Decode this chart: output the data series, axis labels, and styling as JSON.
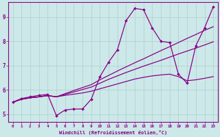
{
  "xlabel": "Windchill (Refroidissement éolien,°C)",
  "bg_color": "#cce8e8",
  "line_color": "#880088",
  "xlim": [
    -0.5,
    23.5
  ],
  "ylim": [
    4.7,
    9.6
  ],
  "yticks": [
    5,
    6,
    7,
    8,
    9
  ],
  "xticks": [
    0,
    1,
    2,
    3,
    4,
    5,
    6,
    7,
    8,
    9,
    10,
    11,
    12,
    13,
    14,
    15,
    16,
    17,
    18,
    19,
    20,
    21,
    22,
    23
  ],
  "lines": [
    {
      "x": [
        0,
        1,
        2,
        3,
        4,
        5,
        6,
        7,
        8,
        9,
        10,
        11,
        12,
        13,
        14,
        15,
        16,
        17,
        18,
        19,
        20,
        21,
        22,
        23
      ],
      "y": [
        5.5,
        5.62,
        5.68,
        5.72,
        5.77,
        5.72,
        5.78,
        5.83,
        5.88,
        5.95,
        6.05,
        6.15,
        6.25,
        6.35,
        6.45,
        6.52,
        6.58,
        6.62,
        6.65,
        6.55,
        6.38,
        6.42,
        6.48,
        6.55
      ],
      "marker": false,
      "lw": 0.9
    },
    {
      "x": [
        0,
        1,
        2,
        3,
        4,
        5,
        6,
        7,
        8,
        9,
        10,
        11,
        12,
        13,
        14,
        15,
        16,
        17,
        18,
        19,
        20,
        21,
        22,
        23
      ],
      "y": [
        5.5,
        5.62,
        5.68,
        5.72,
        5.77,
        5.72,
        5.82,
        5.92,
        6.02,
        6.12,
        6.28,
        6.44,
        6.58,
        6.72,
        6.85,
        6.98,
        7.1,
        7.22,
        7.35,
        7.48,
        7.6,
        7.72,
        7.85,
        7.98
      ],
      "marker": false,
      "lw": 0.9
    },
    {
      "x": [
        0,
        1,
        2,
        3,
        4,
        5,
        6,
        7,
        8,
        9,
        10,
        11,
        12,
        13,
        14,
        15,
        16,
        17,
        18,
        19,
        20,
        21,
        22,
        23
      ],
      "y": [
        5.5,
        5.62,
        5.68,
        5.72,
        5.77,
        5.72,
        5.85,
        5.98,
        6.1,
        6.22,
        6.42,
        6.6,
        6.78,
        6.95,
        7.12,
        7.28,
        7.45,
        7.62,
        7.78,
        7.95,
        8.12,
        8.28,
        8.45,
        8.6
      ],
      "marker": false,
      "lw": 0.9
    },
    {
      "x": [
        0,
        1,
        2,
        3,
        4,
        5,
        6,
        7,
        8,
        9,
        10,
        11,
        12,
        13,
        14,
        15,
        16,
        17,
        18,
        19,
        20,
        21,
        22,
        23
      ],
      "y": [
        5.5,
        5.65,
        5.72,
        5.78,
        5.82,
        4.95,
        5.18,
        5.22,
        5.22,
        5.62,
        6.55,
        7.15,
        7.65,
        8.85,
        9.35,
        9.3,
        8.55,
        8.0,
        7.95,
        6.65,
        6.28,
        7.82,
        8.55,
        9.42
      ],
      "marker": true,
      "lw": 0.9
    }
  ]
}
